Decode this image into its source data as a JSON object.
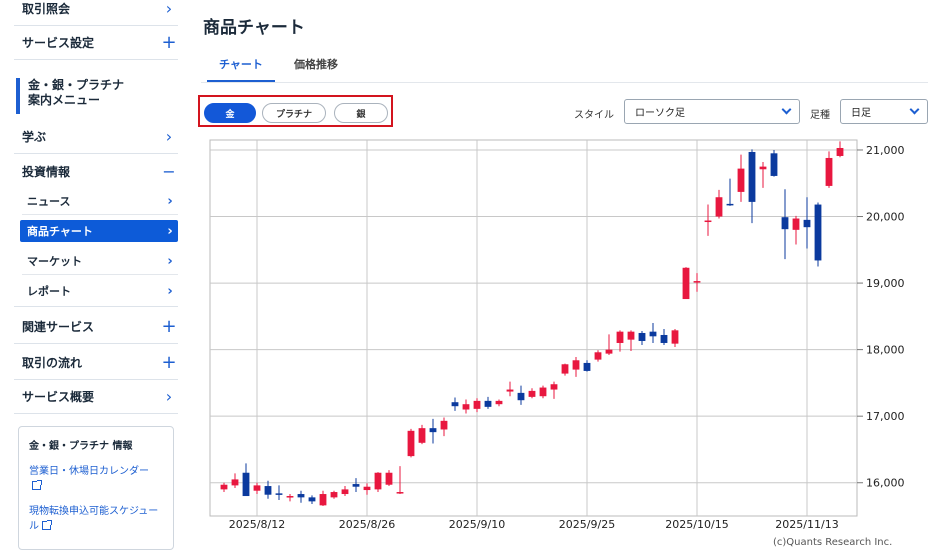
{
  "sidebar": {
    "top_items": [
      {
        "label": "取引照会",
        "icon": "chevron-right-icon"
      },
      {
        "label": "サービス設定",
        "icon": "plus-icon"
      }
    ],
    "section_head": "金・銀・プラチナ\n案内メニュー",
    "learn": {
      "label": "学ぶ",
      "icon": "chevron-right-icon"
    },
    "invest": {
      "label": "投資情報",
      "icon": "minus-icon"
    },
    "sub_items": [
      "ニュース",
      "商品チャート",
      "マーケット",
      "レポート"
    ],
    "bottom_items": [
      {
        "label": "関連サービス",
        "icon": "plus-icon"
      },
      {
        "label": "取引の流れ",
        "icon": "plus-icon"
      },
      {
        "label": "サービス概要",
        "icon": "chevron-right-icon"
      }
    ],
    "info": {
      "title": "金・銀・プラチナ 情報",
      "link1": "営業日・休場日カレンダー",
      "link2": "現物転換申込可能スケジュール"
    }
  },
  "page": {
    "title": "商品チャート",
    "tabs": [
      "チャート",
      "価格推移"
    ],
    "metals": [
      "金",
      "プラチナ",
      "銀"
    ],
    "style_label": "スタイル",
    "style_value": "ローソク足",
    "interval_label": "足種",
    "interval_value": "日足",
    "credit": "(c)Quants Research Inc."
  },
  "colors": {
    "up": "#e8173f",
    "down": "#0b3a9e",
    "accent": "#1d5fd1"
  },
  "chart_data": {
    "type": "candlestick",
    "ylim": [
      15500,
      21150
    ],
    "yticks": [
      16000,
      17000,
      18000,
      19000,
      20000,
      21000
    ],
    "ytick_labels": [
      "16,000",
      "17,000",
      "18,000",
      "19,000",
      "20,000",
      "21,000"
    ],
    "xtick_labels": [
      "2025/8/12",
      "2025/8/26",
      "2025/9/10",
      "2025/9/25",
      "2025/10/15",
      "2025/11/13"
    ],
    "xtick_index": [
      3,
      13,
      23,
      33,
      43,
      53
    ],
    "grid": true,
    "candles": [
      {
        "o": 15900,
        "h": 16000,
        "l": 15860,
        "c": 15970
      },
      {
        "o": 15960,
        "h": 16140,
        "l": 15920,
        "c": 16050
      },
      {
        "o": 16150,
        "h": 16290,
        "l": 15800,
        "c": 15800
      },
      {
        "o": 15880,
        "h": 16000,
        "l": 15830,
        "c": 15960
      },
      {
        "o": 15950,
        "h": 16030,
        "l": 15760,
        "c": 15820
      },
      {
        "o": 15840,
        "h": 15960,
        "l": 15740,
        "c": 15820
      },
      {
        "o": 15780,
        "h": 15830,
        "l": 15720,
        "c": 15800
      },
      {
        "o": 15830,
        "h": 15880,
        "l": 15700,
        "c": 15780
      },
      {
        "o": 15780,
        "h": 15810,
        "l": 15680,
        "c": 15720
      },
      {
        "o": 15660,
        "h": 15880,
        "l": 15650,
        "c": 15830
      },
      {
        "o": 15780,
        "h": 15880,
        "l": 15760,
        "c": 15860
      },
      {
        "o": 15830,
        "h": 15950,
        "l": 15800,
        "c": 15900
      },
      {
        "o": 15980,
        "h": 16070,
        "l": 15860,
        "c": 15940
      },
      {
        "o": 15890,
        "h": 15990,
        "l": 15820,
        "c": 15940
      },
      {
        "o": 15900,
        "h": 16160,
        "l": 15860,
        "c": 16150
      },
      {
        "o": 15970,
        "h": 16190,
        "l": 15950,
        "c": 16150
      },
      {
        "o": 15850,
        "h": 16250,
        "l": 15830,
        "c": 15860
      },
      {
        "o": 16400,
        "h": 16810,
        "l": 16380,
        "c": 16780
      },
      {
        "o": 16600,
        "h": 16870,
        "l": 16580,
        "c": 16820
      },
      {
        "o": 16820,
        "h": 16960,
        "l": 16590,
        "c": 16760
      },
      {
        "o": 16800,
        "h": 16980,
        "l": 16700,
        "c": 16930
      },
      {
        "o": 17210,
        "h": 17280,
        "l": 17080,
        "c": 17150
      },
      {
        "o": 17100,
        "h": 17250,
        "l": 17040,
        "c": 17180
      },
      {
        "o": 17110,
        "h": 17270,
        "l": 17060,
        "c": 17230
      },
      {
        "o": 17230,
        "h": 17290,
        "l": 17110,
        "c": 17140
      },
      {
        "o": 17180,
        "h": 17250,
        "l": 17150,
        "c": 17230
      },
      {
        "o": 17370,
        "h": 17520,
        "l": 17300,
        "c": 17400
      },
      {
        "o": 17350,
        "h": 17460,
        "l": 17170,
        "c": 17240
      },
      {
        "o": 17290,
        "h": 17420,
        "l": 17270,
        "c": 17380
      },
      {
        "o": 17300,
        "h": 17460,
        "l": 17270,
        "c": 17430
      },
      {
        "o": 17400,
        "h": 17520,
        "l": 17260,
        "c": 17480
      },
      {
        "o": 17640,
        "h": 17790,
        "l": 17610,
        "c": 17780
      },
      {
        "o": 17700,
        "h": 17890,
        "l": 17590,
        "c": 17840
      },
      {
        "o": 17800,
        "h": 17840,
        "l": 17670,
        "c": 17680
      },
      {
        "o": 17850,
        "h": 17990,
        "l": 17820,
        "c": 17960
      },
      {
        "o": 17940,
        "h": 18230,
        "l": 17920,
        "c": 18000
      },
      {
        "o": 18100,
        "h": 18290,
        "l": 17970,
        "c": 18270
      },
      {
        "o": 18150,
        "h": 18290,
        "l": 17980,
        "c": 18270
      },
      {
        "o": 18250,
        "h": 18280,
        "l": 18070,
        "c": 18130
      },
      {
        "o": 18270,
        "h": 18400,
        "l": 18100,
        "c": 18200
      },
      {
        "o": 18220,
        "h": 18310,
        "l": 18070,
        "c": 18100
      },
      {
        "o": 18090,
        "h": 18310,
        "l": 18040,
        "c": 18290
      },
      {
        "o": 18760,
        "h": 19240,
        "l": 18760,
        "c": 19230
      },
      {
        "o": 19010,
        "h": 19150,
        "l": 18870,
        "c": 19030
      },
      {
        "o": 19940,
        "h": 20180,
        "l": 19710,
        "c": 19940
      },
      {
        "o": 20000,
        "h": 20400,
        "l": 19970,
        "c": 20290
      },
      {
        "o": 20190,
        "h": 20570,
        "l": 20160,
        "c": 20180
      },
      {
        "o": 20370,
        "h": 20930,
        "l": 20220,
        "c": 20720
      },
      {
        "o": 20970,
        "h": 21010,
        "l": 19900,
        "c": 20220
      },
      {
        "o": 20710,
        "h": 20820,
        "l": 20430,
        "c": 20750
      },
      {
        "o": 20950,
        "h": 21000,
        "l": 20600,
        "c": 20610
      },
      {
        "o": 19990,
        "h": 20410,
        "l": 19360,
        "c": 19810
      },
      {
        "o": 19800,
        "h": 20010,
        "l": 19580,
        "c": 19970
      },
      {
        "o": 19950,
        "h": 20290,
        "l": 19520,
        "c": 19840
      },
      {
        "o": 20180,
        "h": 20210,
        "l": 19250,
        "c": 19340
      },
      {
        "o": 20460,
        "h": 20980,
        "l": 20430,
        "c": 20880
      },
      {
        "o": 20910,
        "h": 21130,
        "l": 20890,
        "c": 21030
      }
    ]
  }
}
